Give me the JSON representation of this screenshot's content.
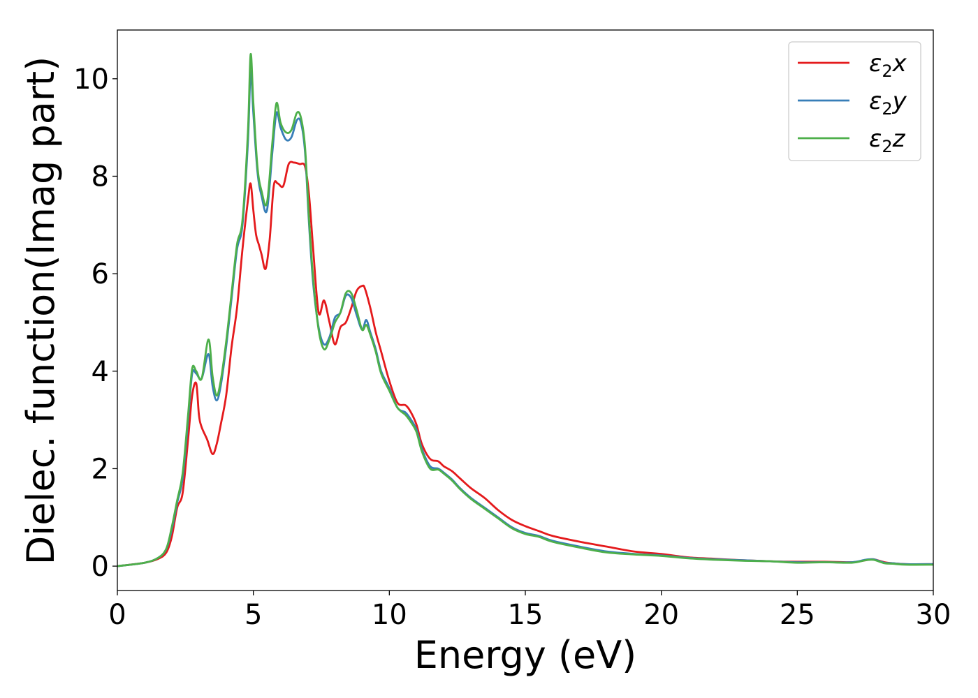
{
  "chart_data": {
    "type": "line",
    "title": "",
    "xlabel": "Energy (eV)",
    "ylabel": "Dielec. function(Imag part)",
    "xlim": [
      0,
      30
    ],
    "ylim": [
      -0.5,
      11.0
    ],
    "xticks": [
      0,
      5,
      10,
      15,
      20,
      25,
      30
    ],
    "yticks": [
      0,
      2,
      4,
      6,
      8,
      10
    ],
    "xtick_labels": [
      "0",
      "5",
      "10",
      "15",
      "20",
      "25",
      "30"
    ],
    "ytick_labels": [
      "0",
      "2",
      "4",
      "6",
      "8",
      "10"
    ],
    "grid": false,
    "legend_position": "top-right",
    "series": [
      {
        "name": "ε₂x",
        "legend_base": "ε",
        "legend_sub": "2",
        "legend_var": "x",
        "color": "#e41a1c",
        "x": [
          0,
          1.0,
          1.5,
          1.8,
          2.0,
          2.2,
          2.4,
          2.6,
          2.75,
          2.9,
          3.0,
          3.1,
          3.3,
          3.5,
          3.65,
          3.8,
          4.0,
          4.2,
          4.4,
          4.6,
          4.8,
          4.9,
          5.0,
          5.1,
          5.2,
          5.3,
          5.45,
          5.6,
          5.75,
          5.9,
          6.1,
          6.3,
          6.5,
          6.7,
          6.9,
          7.05,
          7.2,
          7.4,
          7.6,
          7.8,
          8.0,
          8.2,
          8.4,
          8.6,
          8.8,
          9.0,
          9.1,
          9.3,
          9.5,
          9.7,
          10.0,
          10.3,
          10.6,
          10.8,
          11.0,
          11.2,
          11.5,
          11.8,
          12.0,
          12.3,
          12.6,
          13.0,
          13.5,
          14.0,
          14.5,
          15.0,
          15.5,
          16.0,
          17.0,
          18.0,
          19.0,
          20.0,
          21.0,
          22.0,
          23.0,
          24.0,
          25.0,
          26.0,
          27.0,
          27.5,
          27.8,
          28.2,
          28.5,
          29.0,
          30.0
        ],
        "y": [
          0,
          0.07,
          0.15,
          0.28,
          0.6,
          1.2,
          1.5,
          2.6,
          3.5,
          3.75,
          3.1,
          2.85,
          2.6,
          2.3,
          2.5,
          2.9,
          3.5,
          4.5,
          5.3,
          6.5,
          7.5,
          7.85,
          7.3,
          6.8,
          6.6,
          6.4,
          6.1,
          6.7,
          7.8,
          7.85,
          7.8,
          8.25,
          8.28,
          8.25,
          8.2,
          7.6,
          6.5,
          5.2,
          5.45,
          5.0,
          4.55,
          4.9,
          5.0,
          5.3,
          5.65,
          5.75,
          5.7,
          5.3,
          4.8,
          4.4,
          3.8,
          3.35,
          3.3,
          3.15,
          2.9,
          2.5,
          2.2,
          2.15,
          2.05,
          1.95,
          1.8,
          1.6,
          1.4,
          1.15,
          0.95,
          0.82,
          0.72,
          0.62,
          0.5,
          0.4,
          0.3,
          0.25,
          0.18,
          0.15,
          0.12,
          0.1,
          0.09,
          0.09,
          0.08,
          0.12,
          0.14,
          0.08,
          0.06,
          0.04,
          0.04
        ]
      },
      {
        "name": "ε₂y",
        "legend_base": "ε",
        "legend_sub": "2",
        "legend_var": "y",
        "color": "#377eb8",
        "x": [
          0,
          1.0,
          1.5,
          1.8,
          2.0,
          2.2,
          2.4,
          2.6,
          2.75,
          2.9,
          3.1,
          3.35,
          3.5,
          3.65,
          3.8,
          4.0,
          4.2,
          4.4,
          4.6,
          4.8,
          4.9,
          5.0,
          5.15,
          5.3,
          5.5,
          5.7,
          5.85,
          6.0,
          6.2,
          6.4,
          6.6,
          6.75,
          6.9,
          7.05,
          7.2,
          7.4,
          7.6,
          7.8,
          8.0,
          8.2,
          8.4,
          8.6,
          8.8,
          9.0,
          9.15,
          9.3,
          9.5,
          9.7,
          10.0,
          10.3,
          10.6,
          10.8,
          11.0,
          11.2,
          11.5,
          11.8,
          12.0,
          12.3,
          12.6,
          13.0,
          13.5,
          14.0,
          14.5,
          15.0,
          15.5,
          16.0,
          17.0,
          18.0,
          19.0,
          20.0,
          21.0,
          22.0,
          23.0,
          24.0,
          25.0,
          26.0,
          27.0,
          27.5,
          27.8,
          28.2,
          28.5,
          29.0,
          30.0
        ],
        "y": [
          0,
          0.07,
          0.17,
          0.35,
          0.75,
          1.3,
          1.8,
          3.0,
          3.95,
          3.95,
          3.85,
          4.35,
          3.7,
          3.4,
          3.7,
          4.5,
          5.5,
          6.5,
          7.0,
          8.7,
          10.15,
          9.3,
          8.1,
          7.6,
          7.3,
          8.5,
          9.3,
          9.0,
          8.75,
          8.8,
          9.15,
          9.1,
          8.5,
          7.0,
          5.8,
          4.9,
          4.55,
          4.7,
          5.1,
          5.2,
          5.55,
          5.5,
          5.15,
          4.85,
          5.05,
          4.8,
          4.45,
          4.0,
          3.65,
          3.25,
          3.15,
          3.0,
          2.8,
          2.4,
          2.05,
          2.0,
          1.92,
          1.78,
          1.6,
          1.4,
          1.2,
          1.0,
          0.8,
          0.68,
          0.62,
          0.52,
          0.4,
          0.3,
          0.25,
          0.22,
          0.17,
          0.14,
          0.12,
          0.1,
          0.08,
          0.08,
          0.08,
          0.13,
          0.14,
          0.07,
          0.06,
          0.04,
          0.04
        ]
      },
      {
        "name": "ε₂z",
        "legend_base": "ε",
        "legend_sub": "2",
        "legend_var": "z",
        "color": "#4daf4a",
        "x": [
          0,
          1.0,
          1.5,
          1.8,
          2.0,
          2.2,
          2.4,
          2.6,
          2.75,
          2.9,
          3.1,
          3.35,
          3.5,
          3.65,
          3.8,
          4.0,
          4.2,
          4.4,
          4.6,
          4.8,
          4.9,
          5.0,
          5.15,
          5.3,
          5.5,
          5.7,
          5.85,
          6.0,
          6.2,
          6.4,
          6.6,
          6.75,
          6.9,
          7.05,
          7.2,
          7.4,
          7.6,
          7.8,
          8.0,
          8.2,
          8.4,
          8.6,
          8.8,
          9.0,
          9.15,
          9.3,
          9.5,
          9.7,
          10.0,
          10.3,
          10.6,
          10.8,
          11.0,
          11.2,
          11.5,
          11.8,
          12.0,
          12.3,
          12.6,
          13.0,
          13.5,
          14.0,
          14.5,
          15.0,
          15.5,
          16.0,
          17.0,
          18.0,
          19.0,
          20.0,
          21.0,
          22.0,
          23.0,
          24.0,
          25.0,
          26.0,
          27.0,
          27.5,
          27.8,
          28.2,
          28.5,
          29.0,
          30.0
        ],
        "y": [
          0,
          0.07,
          0.17,
          0.36,
          0.8,
          1.35,
          1.9,
          3.1,
          4.05,
          4.0,
          3.85,
          4.65,
          3.9,
          3.5,
          3.8,
          4.6,
          5.6,
          6.6,
          7.1,
          8.9,
          10.5,
          9.5,
          8.2,
          7.7,
          7.45,
          8.7,
          9.5,
          9.1,
          8.9,
          8.95,
          9.3,
          9.2,
          8.6,
          7.1,
          5.9,
          4.85,
          4.45,
          4.65,
          5.0,
          5.2,
          5.6,
          5.6,
          5.25,
          4.85,
          4.95,
          4.75,
          4.4,
          3.95,
          3.6,
          3.25,
          3.1,
          2.95,
          2.75,
          2.35,
          2.0,
          1.98,
          1.9,
          1.76,
          1.58,
          1.38,
          1.18,
          0.98,
          0.78,
          0.66,
          0.6,
          0.5,
          0.38,
          0.28,
          0.24,
          0.21,
          0.16,
          0.13,
          0.11,
          0.1,
          0.07,
          0.08,
          0.07,
          0.12,
          0.13,
          0.06,
          0.05,
          0.03,
          0.03
        ]
      }
    ]
  }
}
